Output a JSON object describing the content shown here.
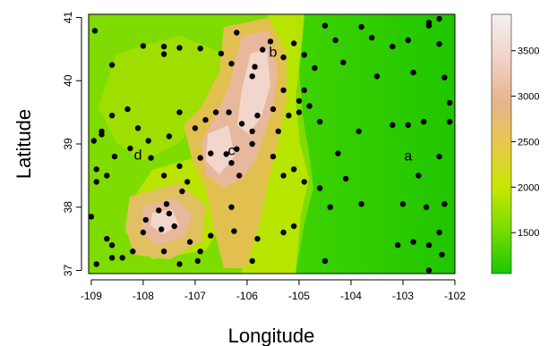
{
  "chart_data": {
    "type": "scatter",
    "title": "",
    "xlabel": "Longitude",
    "ylabel": "Latitude",
    "xlim": [
      -109.05,
      -102.0
    ],
    "ylim": [
      36.95,
      41.05
    ],
    "x_ticks": [
      -109,
      -108,
      -107,
      -106,
      -105,
      -104,
      -103,
      -102
    ],
    "y_ticks": [
      37,
      38,
      39,
      40,
      41
    ],
    "grid": false,
    "background": "elevation raster (color-mapped terrain)",
    "colorbar": {
      "ticks": [
        1500,
        2000,
        2500,
        3000,
        3500
      ],
      "range": [
        1050,
        3900
      ],
      "placement": "right",
      "colors": [
        "#19c800",
        "#73dc00",
        "#c8e600",
        "#e8c84a",
        "#e6b48c",
        "#f0d2c8",
        "#f5f0f0"
      ]
    },
    "annotations": [
      {
        "text": "a",
        "x": -102.9,
        "y": 38.74
      },
      {
        "text": "b",
        "x": -105.5,
        "y": 40.38
      },
      {
        "text": "c",
        "x": -106.3,
        "y": 38.82
      },
      {
        "text": "d",
        "x": -108.1,
        "y": 38.75
      }
    ],
    "points": [
      [
        -108.93,
        40.79
      ],
      [
        -108.6,
        40.25
      ],
      [
        -108.0,
        40.55
      ],
      [
        -107.6,
        40.54
      ],
      [
        -107.6,
        40.42
      ],
      [
        -107.3,
        40.52
      ],
      [
        -106.9,
        40.51
      ],
      [
        -106.5,
        40.43
      ],
      [
        -106.3,
        40.27
      ],
      [
        -106.2,
        40.76
      ],
      [
        -105.7,
        40.49
      ],
      [
        -105.55,
        40.62
      ],
      [
        -105.85,
        40.22
      ],
      [
        -105.9,
        40.07
      ],
      [
        -105.3,
        40.37
      ],
      [
        -105.1,
        40.59
      ],
      [
        -104.9,
        40.41
      ],
      [
        -104.5,
        40.87
      ],
      [
        -104.3,
        40.64
      ],
      [
        -103.8,
        40.85
      ],
      [
        -103.6,
        40.68
      ],
      [
        -102.9,
        40.64
      ],
      [
        -102.5,
        40.87
      ],
      [
        -102.3,
        40.98
      ],
      [
        -102.3,
        40.58
      ],
      [
        -102.5,
        40.92
      ],
      [
        -102.2,
        40.05
      ],
      [
        -102.1,
        39.65
      ],
      [
        -102.1,
        39.35
      ],
      [
        -103.2,
        40.54
      ],
      [
        -102.8,
        40.13
      ],
      [
        -103.5,
        40.07
      ],
      [
        -104.15,
        40.29
      ],
      [
        -104.7,
        40.2
      ],
      [
        -104.9,
        39.85
      ],
      [
        -105.0,
        39.68
      ],
      [
        -105.3,
        39.85
      ],
      [
        -105.5,
        39.55
      ],
      [
        -105.2,
        39.45
      ],
      [
        -104.8,
        39.6
      ],
      [
        -104.6,
        39.35
      ],
      [
        -105.0,
        39.5
      ],
      [
        -105.4,
        39.2
      ],
      [
        -105.8,
        39.45
      ],
      [
        -105.9,
        39.2
      ],
      [
        -106.1,
        39.32
      ],
      [
        -106.35,
        39.5
      ],
      [
        -106.6,
        39.5
      ],
      [
        -106.8,
        39.38
      ],
      [
        -107.0,
        39.25
      ],
      [
        -107.3,
        39.5
      ],
      [
        -107.5,
        39.12
      ],
      [
        -107.9,
        39.05
      ],
      [
        -108.1,
        39.25
      ],
      [
        -108.3,
        39.55
      ],
      [
        -108.6,
        39.45
      ],
      [
        -108.95,
        39.05
      ],
      [
        -108.8,
        39.15
      ],
      [
        -108.8,
        39.2
      ],
      [
        -108.55,
        38.8
      ],
      [
        -108.9,
        38.6
      ],
      [
        -108.7,
        38.5
      ],
      [
        -108.9,
        38.4
      ],
      [
        -108.25,
        38.93
      ],
      [
        -107.6,
        38.5
      ],
      [
        -107.85,
        38.78
      ],
      [
        -107.25,
        38.25
      ],
      [
        -107.15,
        38.4
      ],
      [
        -107.3,
        38.65
      ],
      [
        -106.9,
        38.78
      ],
      [
        -106.7,
        38.85
      ],
      [
        -106.4,
        38.84
      ],
      [
        -106.2,
        38.92
      ],
      [
        -106.3,
        38.7
      ],
      [
        -106.15,
        38.5
      ],
      [
        -105.9,
        39.0
      ],
      [
        -105.5,
        38.8
      ],
      [
        -105.3,
        38.5
      ],
      [
        -105.1,
        38.6
      ],
      [
        -104.9,
        38.4
      ],
      [
        -104.6,
        38.3
      ],
      [
        -104.1,
        38.45
      ],
      [
        -104.25,
        38.85
      ],
      [
        -103.85,
        39.2
      ],
      [
        -103.2,
        39.3
      ],
      [
        -102.9,
        39.3
      ],
      [
        -102.6,
        39.35
      ],
      [
        -102.3,
        38.8
      ],
      [
        -102.7,
        38.5
      ],
      [
        -103.0,
        38.05
      ],
      [
        -102.55,
        38.0
      ],
      [
        -102.2,
        38.05
      ],
      [
        -103.8,
        38.05
      ],
      [
        -104.4,
        38.0
      ],
      [
        -105.1,
        37.7
      ],
      [
        -105.3,
        37.6
      ],
      [
        -105.8,
        37.5
      ],
      [
        -106.25,
        37.62
      ],
      [
        -106.3,
        38.0
      ],
      [
        -106.7,
        37.55
      ],
      [
        -106.9,
        37.3
      ],
      [
        -107.1,
        37.45
      ],
      [
        -107.4,
        37.7
      ],
      [
        -107.5,
        37.9
      ],
      [
        -107.55,
        38.05
      ],
      [
        -107.7,
        37.95
      ],
      [
        -107.65,
        37.65
      ],
      [
        -107.95,
        37.8
      ],
      [
        -108.0,
        37.6
      ],
      [
        -108.2,
        37.3
      ],
      [
        -108.4,
        37.2
      ],
      [
        -108.6,
        37.2
      ],
      [
        -108.7,
        37.5
      ],
      [
        -108.6,
        37.4
      ],
      [
        -108.9,
        37.1
      ],
      [
        -109.0,
        37.85
      ],
      [
        -107.3,
        37.1
      ],
      [
        -107.6,
        37.3
      ],
      [
        -106.95,
        37.15
      ],
      [
        -105.9,
        37.15
      ],
      [
        -104.5,
        37.15
      ],
      [
        -102.5,
        37.0
      ],
      [
        -102.5,
        37.4
      ],
      [
        -102.3,
        37.6
      ],
      [
        -102.8,
        37.45
      ],
      [
        -103.1,
        37.4
      ],
      [
        -102.25,
        37.25
      ]
    ]
  }
}
